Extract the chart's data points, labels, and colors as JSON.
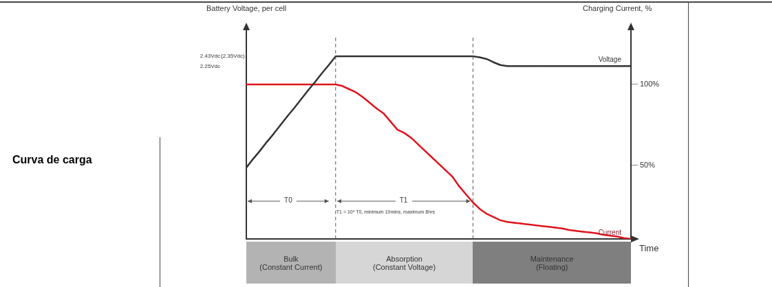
{
  "chart_data": {
    "type": "line",
    "title": "Curva de carga",
    "xlabel": "Time",
    "ylabel": "Battery Voltage, per cell",
    "y2label": "Charging Current, %",
    "categories": [
      null,
      null,
      null,
      null,
      null,
      null,
      null,
      null,
      null,
      null,
      null,
      null,
      null,
      null,
      null,
      null,
      null,
      null,
      null,
      null,
      null,
      null,
      null,
      null,
      null,
      null,
      null,
      null,
      null,
      null,
      null,
      null,
      null,
      null,
      null,
      null,
      null,
      null,
      null,
      null,
      null,
      null,
      null,
      null,
      null,
      null,
      null,
      null,
      null,
      null,
      null,
      null,
      null,
      null,
      null,
      null,
      null
    ],
    "series": [
      {
        "name": "Voltage",
        "color": "#333333",
        "values": [
          0.4,
          0.56,
          0.71,
          0.87,
          1.02,
          1.18,
          1.34,
          1.49,
          1.65,
          1.81,
          1.96,
          2.12,
          2.27,
          2.43,
          2.43,
          2.43,
          2.43,
          2.43,
          2.43,
          2.43,
          2.43,
          2.43,
          2.43,
          2.43,
          2.43,
          2.43,
          2.43,
          2.43,
          2.43,
          2.43,
          2.43,
          2.43,
          2.43,
          2.43,
          2.41,
          2.38,
          2.32,
          2.27,
          2.25,
          2.25,
          2.25,
          2.25,
          2.25,
          2.25,
          2.25,
          2.25,
          2.25,
          2.25,
          2.25,
          2.25,
          2.25,
          2.25,
          2.25,
          2.25,
          2.25,
          2.25,
          2.25
        ]
      },
      {
        "name": "Current",
        "color": "#e0141e",
        "axis": "y2",
        "values": [
          100,
          100,
          100,
          100,
          100,
          100,
          100,
          100,
          100,
          100,
          100,
          100,
          100,
          100,
          99,
          97,
          95,
          92,
          88.5,
          85,
          82,
          77,
          72,
          70,
          67,
          63,
          59,
          55,
          51,
          47,
          43,
          37,
          32,
          27,
          23,
          20,
          18,
          16,
          15,
          14.5,
          14,
          13.5,
          13,
          12.5,
          12,
          11.5,
          11,
          10,
          9.5,
          9,
          8.5,
          8,
          7,
          6.5,
          6,
          5,
          4.5
        ]
      }
    ],
    "ylim": [
      -0.9,
      2.92
    ],
    "yticks": [
      {
        "value": 2.43,
        "label": "2.43Vdc"
      },
      {
        "value": 2.25,
        "label": "2.25Vdc"
      }
    ],
    "y2lim": [
      4.5,
      134
    ],
    "y2ticks": [
      {
        "value": 100,
        "label": "100%"
      },
      {
        "value": 50,
        "label": "50%"
      }
    ],
    "annotations": [
      "(2.35Vdc)",
      "T0",
      "T1",
      "T1 = 10* T0, minimum 10mins, maximum 8hrs",
      "Bulk\n(Constant Current)",
      "Absorption\n(Constant Voltage)",
      "Maintenance\n(Floating)"
    ],
    "grid": false,
    "legend": false,
    "marker": "none",
    "line_style": "solid"
  }
}
